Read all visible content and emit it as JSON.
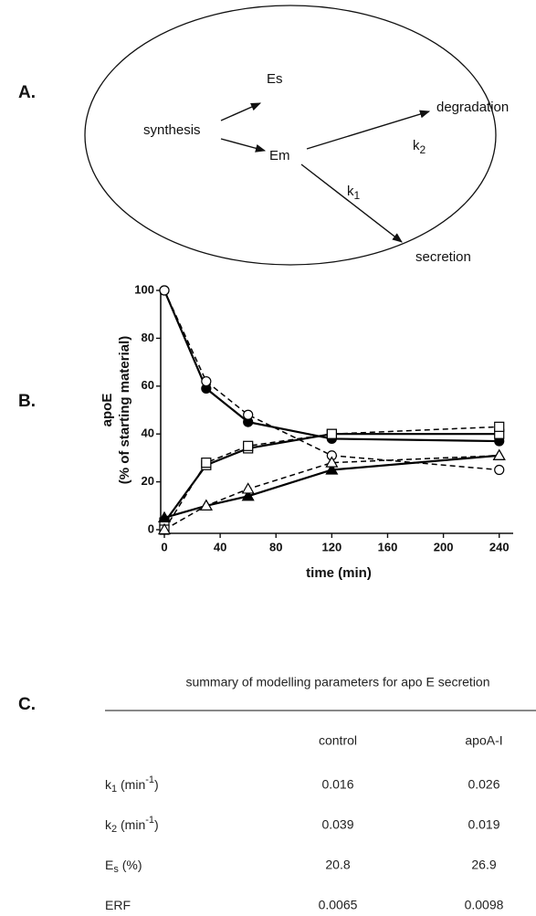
{
  "diagram": {
    "label": "A.",
    "nodes": [
      "synthesis",
      "Es",
      "Em",
      "degradation",
      "secretion"
    ],
    "edge_labels": [
      {
        "base": "k",
        "sub": "2"
      },
      {
        "base": "k",
        "sub": "1"
      }
    ]
  },
  "chart_data": {
    "type": "line",
    "label": "B.",
    "xlabel": "time (min)",
    "ylabel": [
      "apoE",
      "(% of starting material)"
    ],
    "x": [
      0,
      30,
      60,
      120,
      240
    ],
    "xlim": [
      0,
      250
    ],
    "ylim": [
      0,
      100
    ],
    "xticks": [
      0,
      40,
      80,
      120,
      160,
      200,
      240
    ],
    "yticks": [
      0,
      20,
      40,
      60,
      80,
      100
    ],
    "series": [
      {
        "color": "#000000",
        "marker": "circle",
        "filled": true,
        "dashed": false,
        "values": [
          100,
          59,
          45,
          38,
          37
        ]
      },
      {
        "color": "#000000",
        "marker": "circle",
        "filled": false,
        "dashed": true,
        "values": [
          100,
          62,
          48,
          31,
          25
        ]
      },
      {
        "color": "#000000",
        "marker": "square",
        "filled": false,
        "dashed": false,
        "values": [
          3,
          27,
          34,
          40,
          40
        ]
      },
      {
        "color": "#000000",
        "marker": "square",
        "filled": false,
        "dashed": true,
        "values": [
          0,
          28,
          35,
          40,
          43
        ]
      },
      {
        "color": "#000000",
        "marker": "triangle",
        "filled": true,
        "dashed": false,
        "values": [
          5,
          10,
          14,
          25,
          31
        ]
      },
      {
        "color": "#000000",
        "marker": "triangle",
        "filled": false,
        "dashed": true,
        "values": [
          0,
          10,
          17,
          28,
          31
        ]
      }
    ]
  },
  "table": {
    "label": "C.",
    "title": "summary of modelling parameters for apo E secretion",
    "headers": [
      "control",
      "apoA-I"
    ],
    "rows": [
      {
        "label": [
          {
            "t": "k"
          },
          {
            "sub": "1"
          },
          {
            "t": " (min"
          },
          {
            "sup": "-1"
          },
          {
            "t": ")"
          }
        ],
        "values": [
          0.016,
          0.026
        ]
      },
      {
        "label": [
          {
            "t": "k"
          },
          {
            "sub": "2"
          },
          {
            "t": " (min"
          },
          {
            "sup": "-1"
          },
          {
            "t": ")"
          }
        ],
        "values": [
          0.039,
          0.019
        ]
      },
      {
        "label": [
          {
            "t": "E"
          },
          {
            "sub": "s"
          },
          {
            "t": " (%)"
          }
        ],
        "values": [
          20.8,
          26.9
        ]
      },
      {
        "label": [
          {
            "t": "ERF"
          }
        ],
        "values": [
          0.0065,
          0.0098
        ]
      }
    ]
  }
}
